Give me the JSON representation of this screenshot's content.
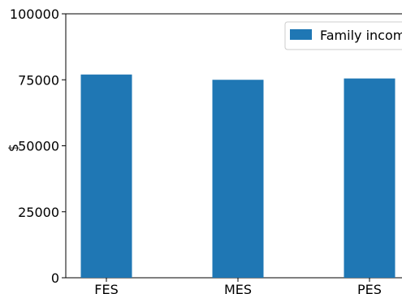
{
  "chart_data": {
    "type": "bar",
    "categories": [
      "FES",
      "MES",
      "PES"
    ],
    "series": [
      {
        "name": "Family income",
        "values": [
          77000,
          75000,
          75500
        ],
        "color": "#1f77b4"
      }
    ],
    "ylabel": "$",
    "xlabel": "",
    "ylim": [
      0,
      100000
    ],
    "yticks": [
      0,
      25000,
      50000,
      75000,
      100000
    ],
    "ytick_labels": [
      "0",
      "25000",
      "50000",
      "75000",
      "100000"
    ],
    "legend_position": "top-right",
    "grid": false
  }
}
